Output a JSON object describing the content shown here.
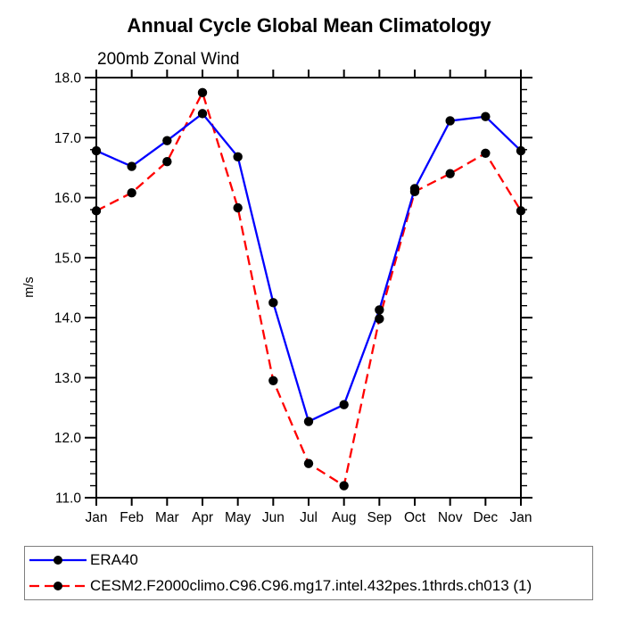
{
  "page": {
    "background": "#ffffff"
  },
  "chart_data": {
    "type": "line",
    "title": "Annual Cycle Global Mean Climatology",
    "subtitle": "200mb Zonal Wind",
    "ylabel": "m/s",
    "xlabel": "",
    "categories": [
      "Jan",
      "Feb",
      "Mar",
      "Apr",
      "May",
      "Jun",
      "Jul",
      "Aug",
      "Sep",
      "Oct",
      "Nov",
      "Dec",
      "Jan"
    ],
    "ylim": [
      11.0,
      18.0
    ],
    "y_major_step": 1.0,
    "y_minor_step": 0.2,
    "y_tick_labels": [
      "11.0",
      "12.0",
      "13.0",
      "14.0",
      "15.0",
      "16.0",
      "17.0",
      "18.0"
    ],
    "grid": false,
    "legend_position": "bottom-left",
    "axis_color": "#000000",
    "text_color": "#000000",
    "marker_color": "#000000",
    "series": [
      {
        "name": "ERA40",
        "color": "#0000ff",
        "line_style": "solid",
        "marker": "filled-circle",
        "values": [
          16.78,
          16.52,
          16.95,
          17.4,
          16.68,
          14.25,
          12.27,
          12.55,
          14.13,
          16.15,
          17.28,
          17.35,
          16.78
        ]
      },
      {
        "name": "CESM2.F2000climo.C96.C96.mg17.intel.432pes.1thrds.ch013 (1)",
        "color": "#ff0000",
        "line_style": "dashed",
        "marker": "filled-circle",
        "values": [
          15.78,
          16.08,
          16.6,
          17.75,
          15.83,
          12.95,
          11.57,
          11.2,
          13.98,
          16.1,
          16.4,
          16.74,
          15.78
        ]
      }
    ]
  }
}
